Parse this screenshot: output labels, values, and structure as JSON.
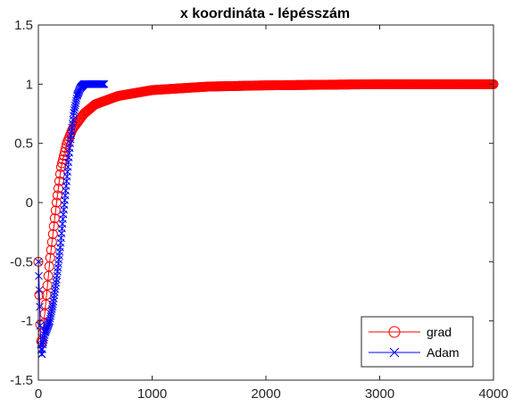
{
  "chart_data": {
    "type": "line",
    "title": "x koordináta - lépésszám",
    "xlabel": "",
    "ylabel": "",
    "xlim": [
      0,
      4000
    ],
    "ylim": [
      -1.5,
      1.5
    ],
    "xticks": [
      "0",
      "1000",
      "2000",
      "3000",
      "4000"
    ],
    "yticks": [
      "1.5",
      "1",
      "0.5",
      "0",
      "-0.5",
      "-1",
      "-1.5"
    ],
    "xtick_values": [
      0,
      1000,
      2000,
      3000,
      4000
    ],
    "ytick_values": [
      1.5,
      1,
      0.5,
      0,
      -0.5,
      -1,
      -1.5
    ],
    "grid": false,
    "legend_position": "bottom-right",
    "series": [
      {
        "name": "grad",
        "color": "#ff0000",
        "marker": "circle",
        "x": [
          0,
          10,
          20,
          30,
          40,
          50,
          60,
          80,
          100,
          130,
          160,
          200,
          250,
          300,
          400,
          500,
          700,
          1000,
          1500,
          2000,
          2500,
          3000,
          3500,
          4000
        ],
        "y": [
          -0.5,
          -0.85,
          -1.15,
          -1.2,
          -1.1,
          -1.0,
          -0.9,
          -0.7,
          -0.5,
          -0.25,
          0.0,
          0.3,
          0.5,
          0.62,
          0.75,
          0.83,
          0.9,
          0.95,
          0.98,
          0.99,
          0.995,
          1.0,
          1.0,
          1.0
        ]
      },
      {
        "name": "Adam",
        "color": "#0000ff",
        "marker": "x",
        "x": [
          0,
          10,
          20,
          30,
          40,
          60,
          80,
          100,
          130,
          160,
          190,
          220,
          250,
          280,
          310,
          340,
          370,
          400,
          430,
          460,
          500,
          540,
          580
        ],
        "y": [
          -0.5,
          -0.8,
          -1.2,
          -1.3,
          -1.2,
          -1.1,
          -1.05,
          -1.0,
          -0.85,
          -0.65,
          -0.4,
          -0.1,
          0.2,
          0.5,
          0.75,
          0.9,
          0.97,
          1.0,
          1.0,
          1.0,
          1.0,
          1.0,
          1.0
        ]
      }
    ]
  }
}
